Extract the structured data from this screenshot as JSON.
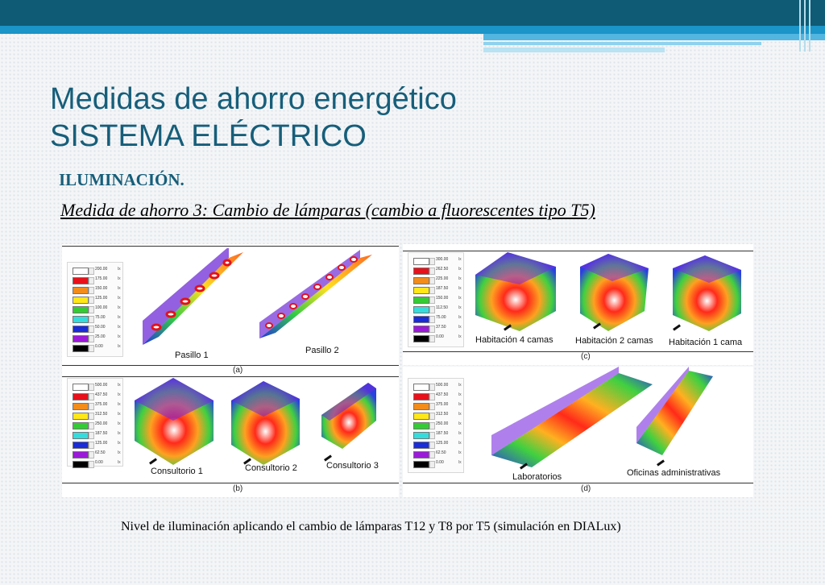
{
  "title": {
    "line1": "Medidas de ahorro energético",
    "line2": "SISTEMA ELÉCTRICO"
  },
  "subtitle": "ILUMINACIÓN.",
  "measure": "Medida de ahorro 3: Cambio de lámparas (cambio a fluorescentes tipo T5)",
  "caption": "Nivel de iluminación aplicando el cambio de lámparas T12 y T8 por T5 (simulación en DIALux)",
  "legend_colors": [
    "#ffffff",
    "#e8101a",
    "#f28c1a",
    "#ffe71a",
    "#33cc33",
    "#33dddd",
    "#1a2bd9",
    "#9b1ad9",
    "#000000"
  ],
  "legend_unit": "lx",
  "panels": {
    "a": {
      "letter": "(a)",
      "legend_values": [
        "200.00",
        "175.00",
        "150.00",
        "125.00",
        "100.00",
        "75.00",
        "50.00",
        "25.00",
        "0.00"
      ],
      "rooms": [
        "Pasillo 1",
        "Pasillo 2"
      ]
    },
    "b": {
      "letter": "(b)",
      "legend_values": [
        "500.00",
        "437.50",
        "375.00",
        "312.50",
        "250.00",
        "187.50",
        "125.00",
        "62.50",
        "0.00"
      ],
      "rooms": [
        "Consultorio 1",
        "Consultorio 2",
        "Consultorio 3"
      ]
    },
    "c": {
      "letter": "(c)",
      "legend_values": [
        "300.00",
        "262.50",
        "225.00",
        "187.50",
        "150.00",
        "112.50",
        "75.00",
        "37.50",
        "0.00"
      ],
      "rooms": [
        "Habitación 4 camas",
        "Habitación 2 camas",
        "Habitación 1 cama"
      ]
    },
    "d": {
      "letter": "(d)",
      "legend_values": [
        "500.00",
        "437.50",
        "375.00",
        "312.50",
        "250.00",
        "187.50",
        "125.00",
        "62.50",
        "0.00"
      ],
      "rooms": [
        "Laboratorios",
        "Oficinas administrativas"
      ]
    }
  }
}
